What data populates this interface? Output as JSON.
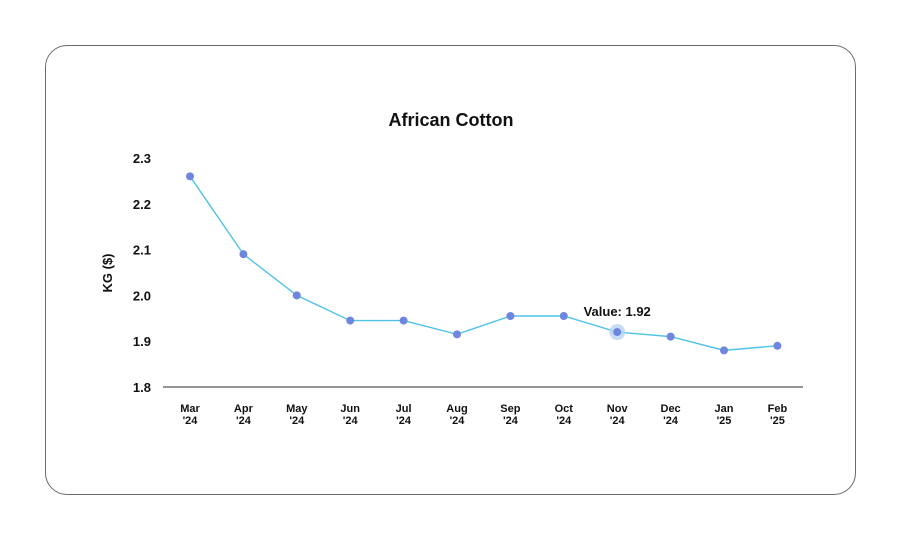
{
  "chart_data": {
    "type": "line",
    "title": "African Cotton",
    "xlabel": "",
    "ylabel": "KG ($)",
    "ylim": [
      1.8,
      2.3
    ],
    "yticks": [
      "1.8",
      "1.9",
      "2.0",
      "2.1",
      "2.2",
      "2.3"
    ],
    "categories": [
      [
        "Mar",
        "'24"
      ],
      [
        "Apr",
        "'24"
      ],
      [
        "May",
        "'24"
      ],
      [
        "Jun",
        "'24"
      ],
      [
        "Jul",
        "'24"
      ],
      [
        "Aug",
        "'24"
      ],
      [
        "Sep",
        "'24"
      ],
      [
        "Oct",
        "'24"
      ],
      [
        "Nov",
        "'24"
      ],
      [
        "Dec",
        "'24"
      ],
      [
        "Jan",
        "'25"
      ],
      [
        "Feb",
        "'25"
      ]
    ],
    "series": [
      {
        "name": "African Cotton",
        "values": [
          2.26,
          2.09,
          2.0,
          1.945,
          1.945,
          1.915,
          1.955,
          1.955,
          1.92,
          1.91,
          1.88,
          1.89
        ]
      }
    ],
    "grid": false,
    "legend": null,
    "highlight": {
      "index": 8,
      "label": "Value: 1.92"
    },
    "colors": {
      "line": "#4fc3e8",
      "marker": "#6f86e0",
      "highlight_halo": "#b9d4f5",
      "axis": "#555555"
    }
  }
}
